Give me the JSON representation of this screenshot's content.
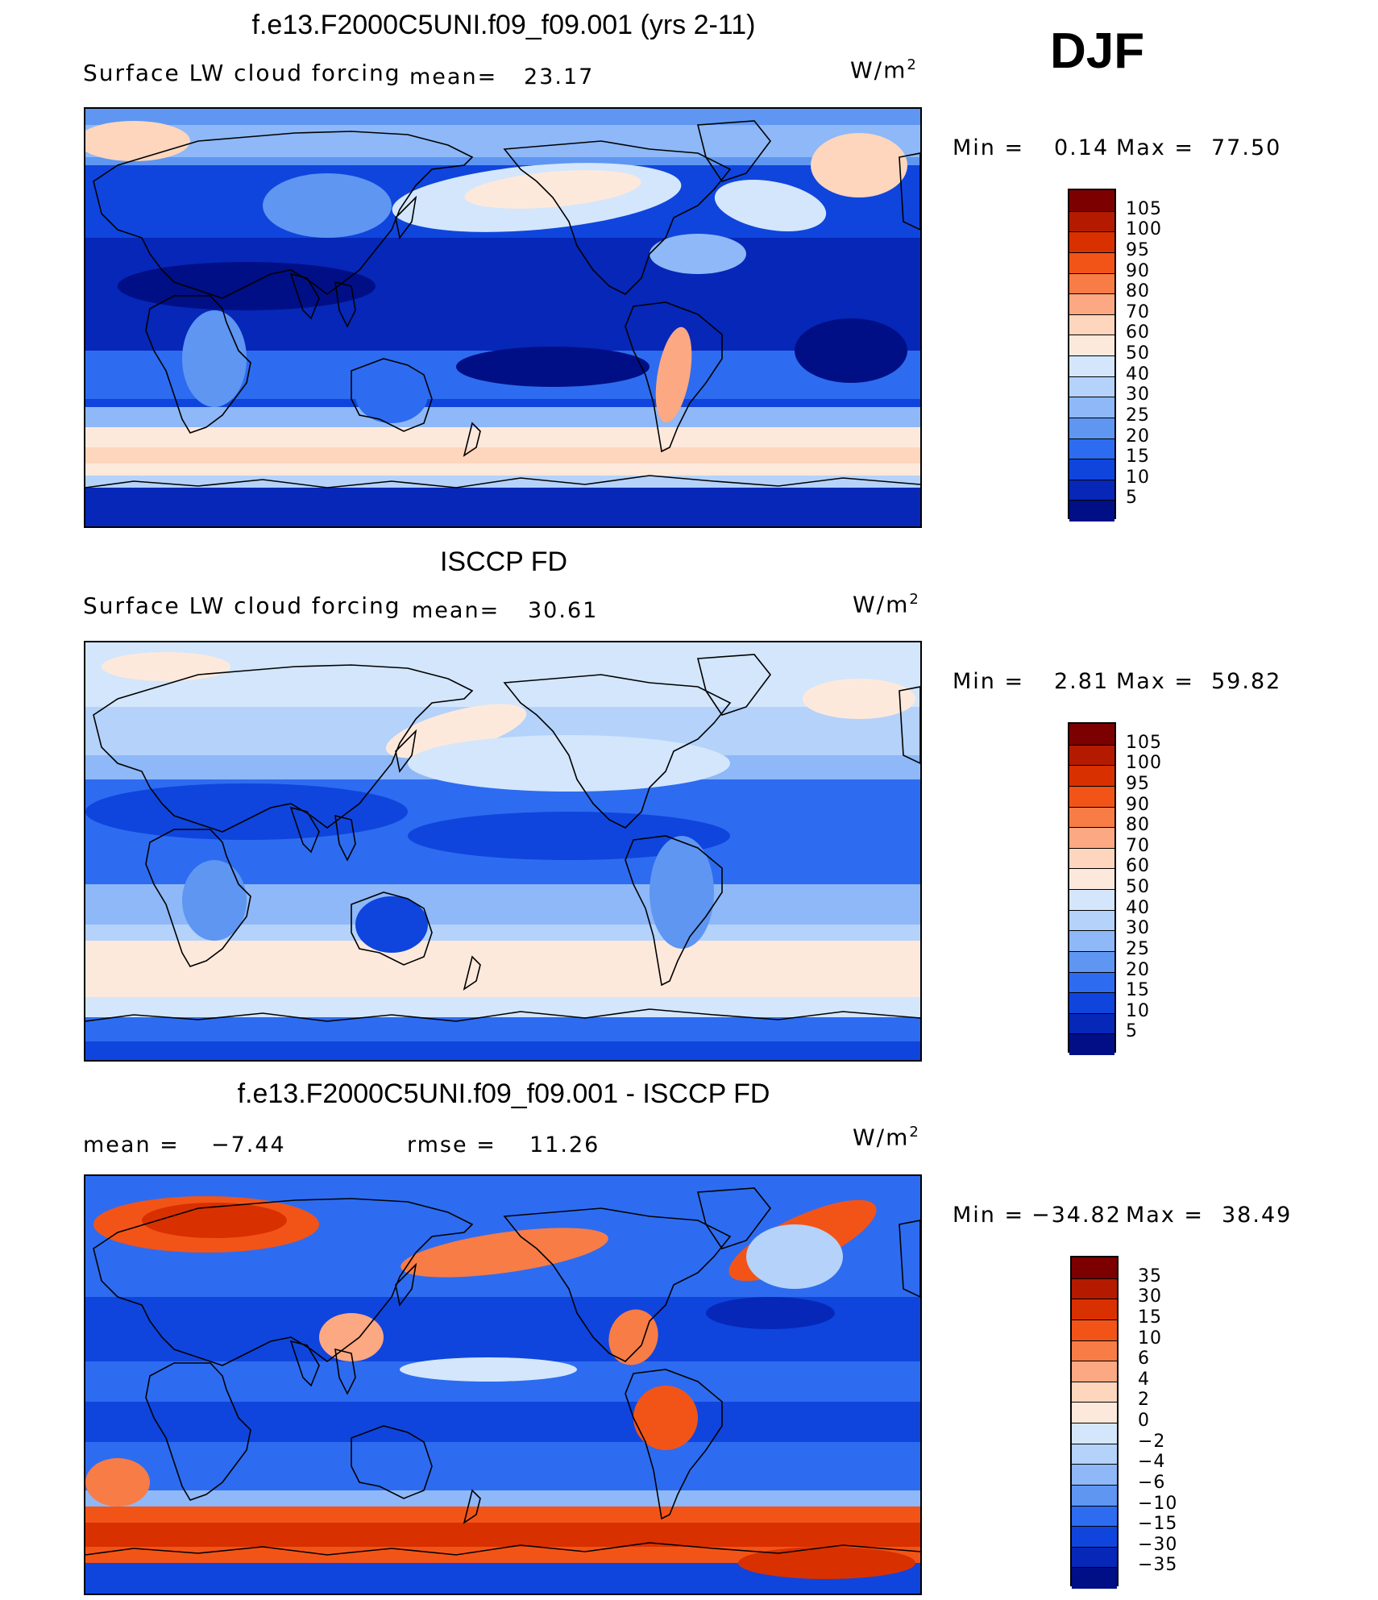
{
  "season": "DJF",
  "panels": [
    {
      "title": "f.e13.F2000C5UNI.f09_f09.001 (yrs 2-11)",
      "variable": "Surface LW cloud forcing",
      "mean_label": "mean=",
      "mean_value": "23.17",
      "units_base": "W/m",
      "units_exp": "2",
      "min_label": "Min =",
      "min_value": "0.14",
      "max_label": "Max =",
      "max_value": "77.50",
      "colorbar": {
        "labels": [
          "105",
          "100",
          "95",
          "90",
          "80",
          "70",
          "60",
          "50",
          "40",
          "30",
          "25",
          "20",
          "15",
          "10",
          "5"
        ],
        "colors": [
          "#7d0000",
          "#b31a00",
          "#d93000",
          "#f25418",
          "#f87c46",
          "#fba883",
          "#fdd6bd",
          "#fde9dc",
          "#d3e6fb",
          "#b4d2fa",
          "#8eb8f7",
          "#5e96f2",
          "#2d6cf0",
          "#0f45dd",
          "#0627b8",
          "#000f86"
        ]
      },
      "field": "model"
    },
    {
      "title": "ISCCP FD",
      "variable": "Surface LW cloud forcing",
      "mean_label": "mean=",
      "mean_value": "30.61",
      "units_base": "W/m",
      "units_exp": "2",
      "min_label": "Min =",
      "min_value": "2.81",
      "max_label": "Max =",
      "max_value": "59.82",
      "colorbar": {
        "labels": [
          "105",
          "100",
          "95",
          "90",
          "80",
          "70",
          "60",
          "50",
          "40",
          "30",
          "25",
          "20",
          "15",
          "10",
          "5"
        ],
        "colors": [
          "#7d0000",
          "#b31a00",
          "#d93000",
          "#f25418",
          "#f87c46",
          "#fba883",
          "#fdd6bd",
          "#fde9dc",
          "#d3e6fb",
          "#b4d2fa",
          "#8eb8f7",
          "#5e96f2",
          "#2d6cf0",
          "#0f45dd",
          "#0627b8",
          "#000f86"
        ]
      },
      "field": "obs"
    },
    {
      "title": "f.e13.F2000C5UNI.f09_f09.001 - ISCCP FD",
      "mean_label": "mean =",
      "mean_value": "−7.44",
      "rmse_label": "rmse =",
      "rmse_value": "11.26",
      "units_base": "W/m",
      "units_exp": "2",
      "min_label": "Min =",
      "min_value": "−34.82",
      "max_label": "Max =",
      "max_value": "38.49",
      "colorbar": {
        "labels": [
          "35",
          "30",
          "15",
          "10",
          "6",
          "4",
          "2",
          "0",
          "−2",
          "−4",
          "−6",
          "−10",
          "−15",
          "−30",
          "−35"
        ],
        "colors": [
          "#7d0000",
          "#b31a00",
          "#d93000",
          "#f25418",
          "#f87c46",
          "#fba883",
          "#fdd6bd",
          "#fde9dc",
          "#d3e6fb",
          "#b4d2fa",
          "#8eb8f7",
          "#5e96f2",
          "#2d6cf0",
          "#0f45dd",
          "#0627b8",
          "#000f86"
        ]
      },
      "field": "diff"
    }
  ]
}
